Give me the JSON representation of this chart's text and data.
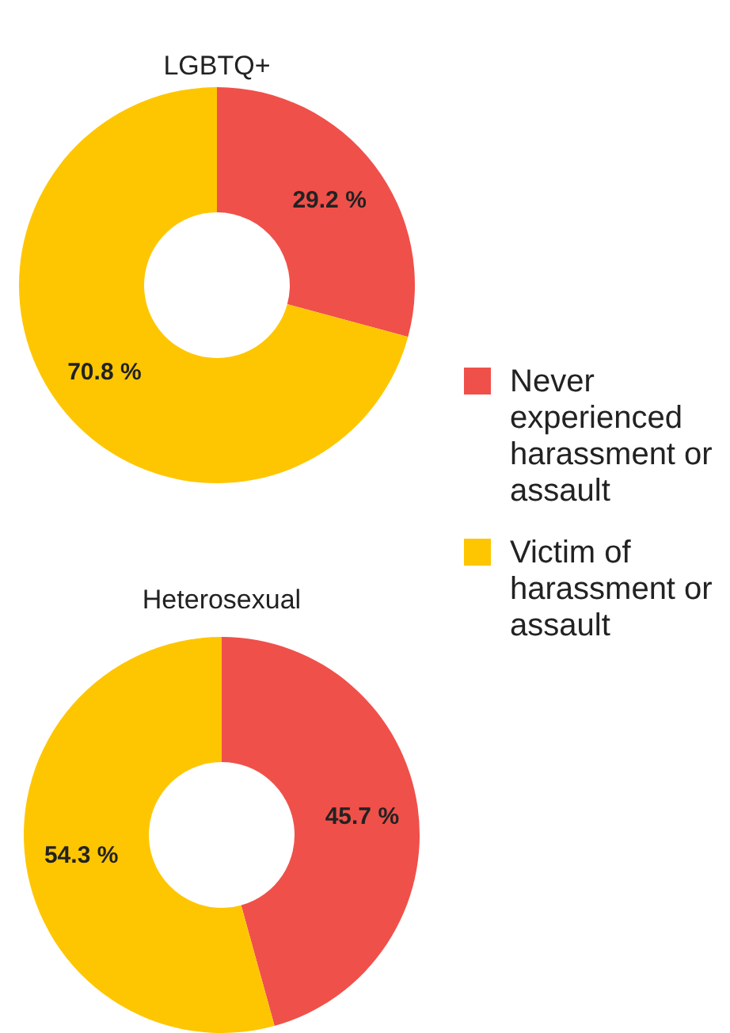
{
  "chart_data": [
    {
      "type": "donut",
      "title": "LGBTQ+",
      "categories": [
        "Never experienced harassment or assault",
        "Victim of harassment or assault"
      ],
      "values": [
        29.2,
        70.8
      ],
      "value_labels": [
        "29.2 %",
        "70.8 %"
      ],
      "colors": [
        "#f0504a",
        "#fec600"
      ],
      "legend": "right"
    },
    {
      "type": "donut",
      "title": "Heterosexual",
      "categories": [
        null,
        null
      ],
      "values": [
        45.7,
        54.3
      ],
      "value_labels": [
        "45.7 %",
        "54.3 %"
      ],
      "colors": [
        "#f0504a",
        "#fec600"
      ]
    }
  ]
}
